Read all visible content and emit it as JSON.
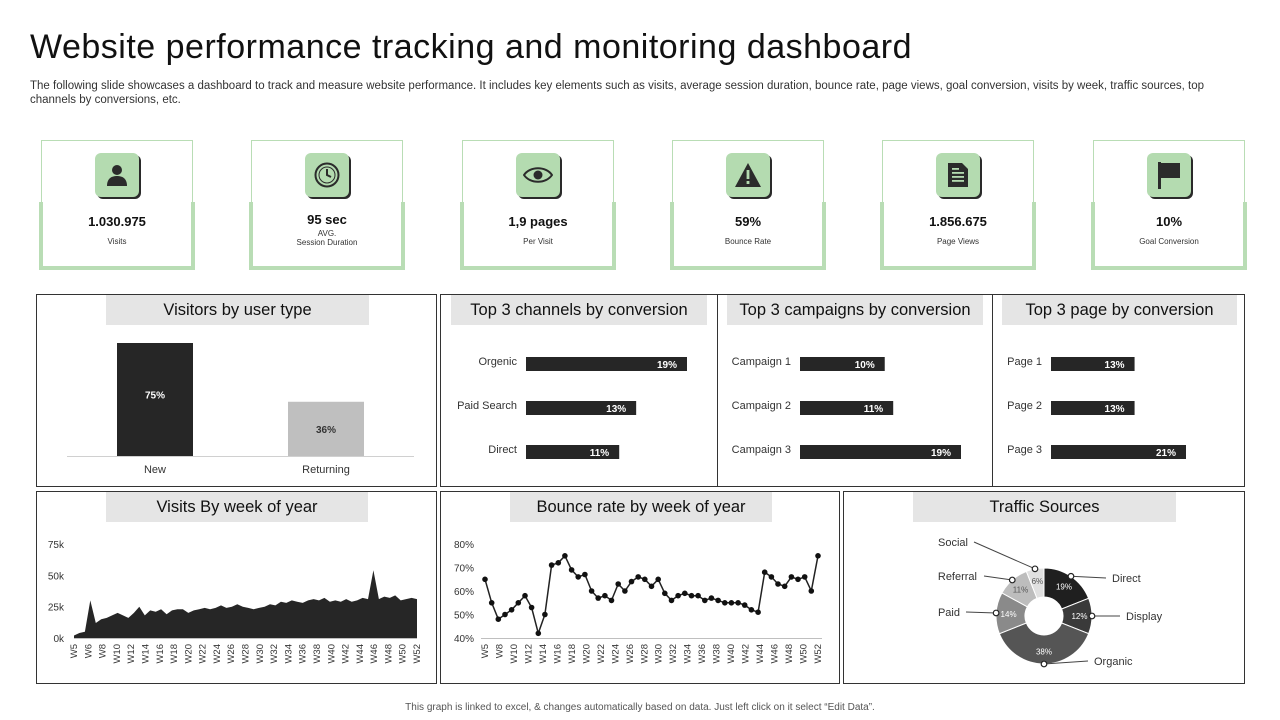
{
  "header": {
    "title": "Website performance tracking and monitoring dashboard",
    "subtitle": "The following slide showcases a dashboard to track and measure website performance. It includes key elements such as visits, average session duration, bounce rate, page views, goal conversion, visits by week, traffic sources, top channels by conversions, etc."
  },
  "kpis": [
    {
      "value": "1.030.975",
      "label": "Visits",
      "icon": "user-icon"
    },
    {
      "value": "95 sec",
      "label": "AVG.",
      "label2": "Session Duration",
      "icon": "clock-icon"
    },
    {
      "value": "1,9 pages",
      "label": "Per Visit",
      "icon": "eye-icon"
    },
    {
      "value": "59%",
      "label": "Bounce Rate",
      "icon": "warning-icon"
    },
    {
      "value": "1.856.675",
      "label": "Page Views",
      "icon": "document-icon"
    },
    {
      "value": "10%",
      "label": "Goal Conversion",
      "icon": "flag-icon"
    }
  ],
  "panels": {
    "visitors_title": "Visitors by user type",
    "channels_title": "Top 3 channels by conversion",
    "campaigns_title": "Top 3 campaigns by conversion",
    "pages_title": "Top 3 page by conversion",
    "visits_week_title": "Visits By week of year",
    "bounce_week_title": "Bounce rate by week of year",
    "traffic_title": "Traffic Sources"
  },
  "footer": "This graph is linked to excel, & changes automatically based on data. Just left click on it select “Edit Data”.",
  "chart_data": [
    {
      "type": "bar",
      "title": "Visitors by user type",
      "categories": [
        "New",
        "Returning"
      ],
      "values": [
        75,
        36
      ],
      "data_labels": [
        "75%",
        "36%"
      ],
      "colors": [
        "#262626",
        "#bfbfbf"
      ]
    },
    {
      "type": "bar",
      "orientation": "horizontal",
      "title": "Top 3 channels by conversion",
      "categories": [
        "Orgenic",
        "Paid Search",
        "Direct"
      ],
      "values": [
        19,
        13,
        11
      ],
      "data_labels": [
        "19%",
        "13%",
        "11%"
      ]
    },
    {
      "type": "bar",
      "orientation": "horizontal",
      "title": "Top 3 campaigns by conversion",
      "categories": [
        "Campaign 1",
        "Campaign 2",
        "Campaign 3"
      ],
      "values": [
        10,
        11,
        19
      ],
      "data_labels": [
        "10%",
        "11%",
        "19%"
      ]
    },
    {
      "type": "bar",
      "orientation": "horizontal",
      "title": "Top 3 page by conversion",
      "categories": [
        "Page 1",
        "Page 2",
        "Page 3"
      ],
      "values": [
        13,
        13,
        21
      ],
      "data_labels": [
        "13%",
        "13%",
        "21%"
      ]
    },
    {
      "type": "area",
      "title": "Visits By week of year",
      "x_tick_labels": [
        "W5",
        "W6",
        "W8",
        "W10",
        "W12",
        "W14",
        "W16",
        "W18",
        "W20",
        "W22",
        "W24",
        "W26",
        "W28",
        "W30",
        "W32",
        "W34",
        "W36",
        "W38",
        "W40",
        "W42",
        "W44",
        "W46",
        "W48",
        "W50",
        "W52"
      ],
      "y_tick_labels": [
        "0k",
        "25k",
        "50k",
        "75k"
      ],
      "ylim": [
        0,
        75000
      ],
      "values": [
        2000,
        4000,
        5000,
        30000,
        12000,
        15000,
        16000,
        18000,
        20000,
        18000,
        16000,
        20000,
        25000,
        18000,
        22000,
        21000,
        23000,
        19000,
        22000,
        23000,
        23000,
        20000,
        22000,
        23000,
        24000,
        23000,
        24000,
        26000,
        24000,
        25000,
        27000,
        25000,
        24000,
        23000,
        24000,
        25000,
        27000,
        26000,
        29000,
        28000,
        30000,
        29000,
        28000,
        30000,
        31000,
        30000,
        32000,
        29000,
        30000,
        29000,
        31000,
        29000,
        30000,
        32000,
        31000,
        54000,
        31000,
        33000,
        32000,
        34000,
        30000,
        31000,
        32000,
        31000
      ]
    },
    {
      "type": "line",
      "title": "Bounce rate by week of year",
      "x_tick_labels": [
        "W5",
        "W8",
        "W10",
        "W12",
        "W14",
        "W16",
        "W18",
        "W20",
        "W22",
        "W24",
        "W26",
        "W28",
        "W30",
        "W32",
        "W34",
        "W36",
        "W38",
        "W40",
        "W42",
        "W44",
        "W46",
        "W48",
        "W50",
        "W52"
      ],
      "y_tick_labels": [
        "40%",
        "50%",
        "60%",
        "70%",
        "80%"
      ],
      "ylim": [
        40,
        80
      ],
      "values": [
        65,
        55,
        48,
        50,
        52,
        55,
        58,
        53,
        42,
        50,
        71,
        72,
        75,
        69,
        66,
        67,
        60,
        57,
        58,
        56,
        63,
        60,
        64,
        66,
        65,
        62,
        65,
        59,
        56,
        58,
        59,
        58,
        58,
        56,
        57,
        56,
        55,
        55,
        55,
        54,
        52,
        51,
        68,
        66,
        63,
        62,
        66,
        65,
        66,
        60,
        75
      ]
    },
    {
      "type": "pie",
      "donut": true,
      "title": "Traffic Sources",
      "labels": [
        "Direct",
        "Display",
        "Organic",
        "Paid",
        "Referral",
        "Social"
      ],
      "values": [
        19,
        12,
        38,
        14,
        11,
        6
      ],
      "data_labels": [
        "19%",
        "12%",
        "38%",
        "14%",
        "11%",
        "6%"
      ],
      "colors": [
        "#1f1f1f",
        "#3a3a3a",
        "#555555",
        "#8a8a8a",
        "#bdbdbd",
        "#e0e0e0"
      ]
    }
  ]
}
